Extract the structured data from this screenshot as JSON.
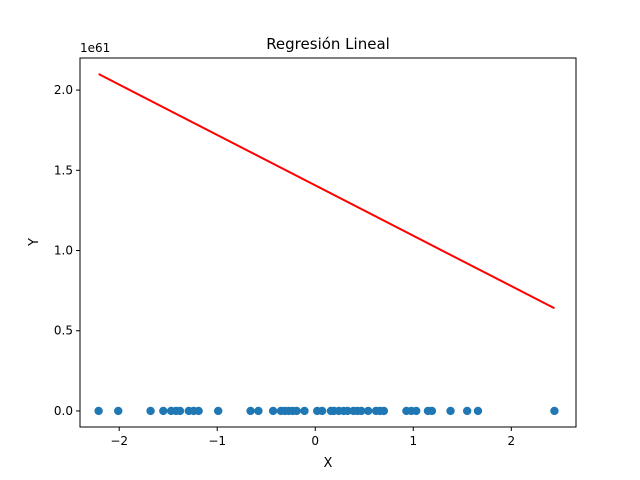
{
  "chart_data": {
    "type": "scatter",
    "title": "Regresión Lineal",
    "xlabel": "X",
    "ylabel": "Y",
    "y_offset_label": "1e61",
    "xlim": [
      -2.4,
      2.66
    ],
    "ylim": [
      -0.1,
      2.2
    ],
    "x_ticks": [
      -2,
      -1,
      0,
      1,
      2
    ],
    "x_tick_labels": [
      "−2",
      "−1",
      "0",
      "1",
      "2"
    ],
    "y_ticks": [
      0.0,
      0.5,
      1.0,
      1.5,
      2.0
    ],
    "y_tick_labels": [
      "0.0",
      "0.5",
      "1.0",
      "1.5",
      "2.0"
    ],
    "grid": false,
    "series": [
      {
        "kind": "scatter",
        "color": "#1f77b4",
        "x": [
          -2.21,
          -2.01,
          -1.68,
          -1.55,
          -1.47,
          -1.42,
          -1.38,
          -1.29,
          -1.24,
          -1.19,
          -0.99,
          -0.66,
          -0.58,
          -0.43,
          -0.35,
          -0.31,
          -0.27,
          -0.23,
          -0.19,
          -0.11,
          0.02,
          0.07,
          0.16,
          0.19,
          0.24,
          0.29,
          0.33,
          0.39,
          0.43,
          0.47,
          0.54,
          0.62,
          0.66,
          0.7,
          0.93,
          0.98,
          1.03,
          1.15,
          1.19,
          1.38,
          1.55,
          1.66,
          2.44
        ],
        "y": [
          0,
          0,
          0,
          0,
          0,
          0,
          0,
          0,
          0,
          0,
          0,
          0,
          0,
          0,
          0,
          0,
          0,
          0,
          0,
          0,
          0,
          0,
          0,
          0,
          0,
          0,
          0,
          0,
          0,
          0,
          0,
          0,
          0,
          0,
          0,
          0,
          0,
          0,
          0,
          0,
          0,
          0,
          0
        ]
      },
      {
        "kind": "line",
        "color": "#ff0000",
        "x": [
          -2.21,
          2.44
        ],
        "y": [
          2.1,
          0.64
        ]
      }
    ]
  }
}
